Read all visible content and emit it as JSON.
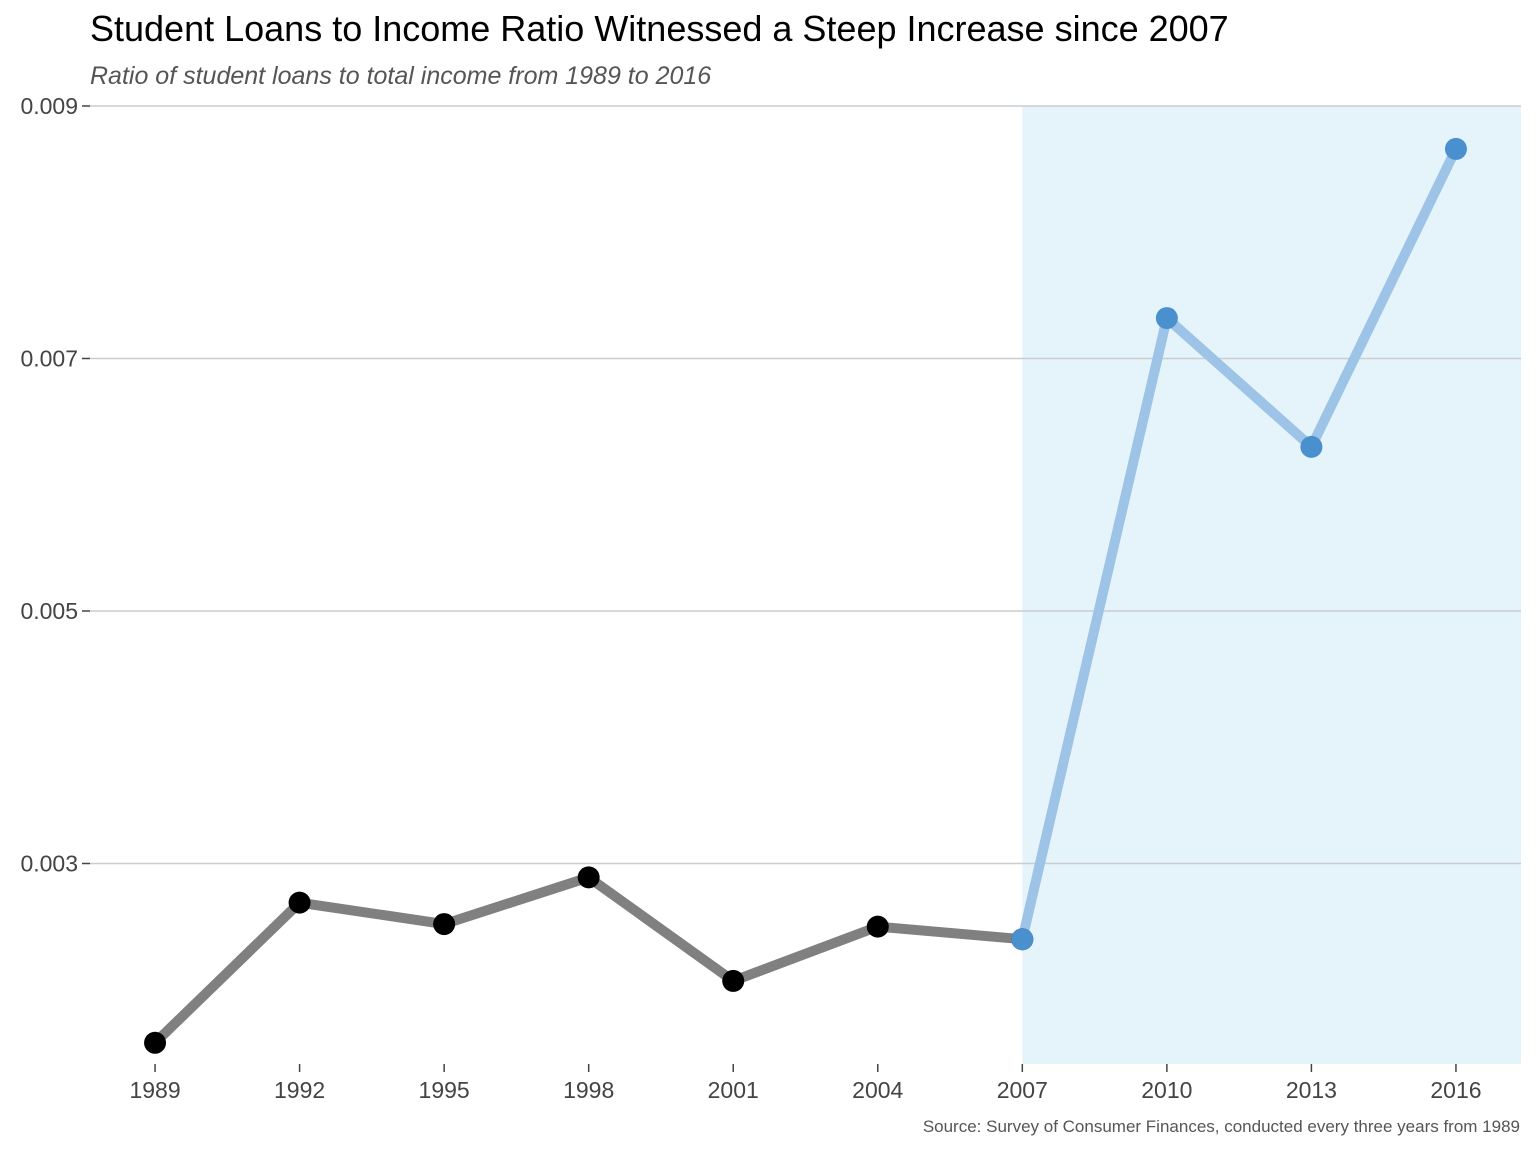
{
  "chart_data": {
    "type": "line",
    "title": "Student Loans to Income Ratio Witnessed a Steep Increase since 2007",
    "subtitle": "Ratio of student loans to total income from 1989 to 2016",
    "caption": "Source: Survey of Consumer Finances, conducted every three years from 1989",
    "xlabel": "",
    "ylabel": "",
    "x": [
      1989,
      1992,
      1995,
      1998,
      2001,
      2004,
      2007,
      2010,
      2013,
      2016
    ],
    "x_tick_labels": [
      "1989",
      "1992",
      "1995",
      "1998",
      "2001",
      "2004",
      "2007",
      "2010",
      "2013",
      "2016"
    ],
    "y_ticks": [
      0.003,
      0.005,
      0.007,
      0.009
    ],
    "y_tick_labels": [
      "0.003",
      "0.005",
      "0.007",
      "0.009"
    ],
    "xlim": [
      1987.65,
      2017.35
    ],
    "ylim": [
      0.00138,
      0.009
    ],
    "grid": "horizontal",
    "highlight_region": {
      "x_start": 2007,
      "color": "#e5f4fb"
    },
    "series": [
      {
        "segment": "before-2007",
        "line_color": "#808080",
        "point_color": "#000000",
        "x": [
          1989,
          1992,
          1995,
          1998,
          2001,
          2004,
          2007
        ],
        "values": [
          0.00158,
          0.00269,
          0.00252,
          0.00289,
          0.00207,
          0.0025,
          0.0024
        ]
      },
      {
        "segment": "after-2007",
        "line_color": "#9dc4e6",
        "point_color": "#4a90cf",
        "x": [
          2007,
          2010,
          2013,
          2016
        ],
        "values": [
          0.0024,
          0.00732,
          0.0063,
          0.00866
        ]
      }
    ]
  }
}
